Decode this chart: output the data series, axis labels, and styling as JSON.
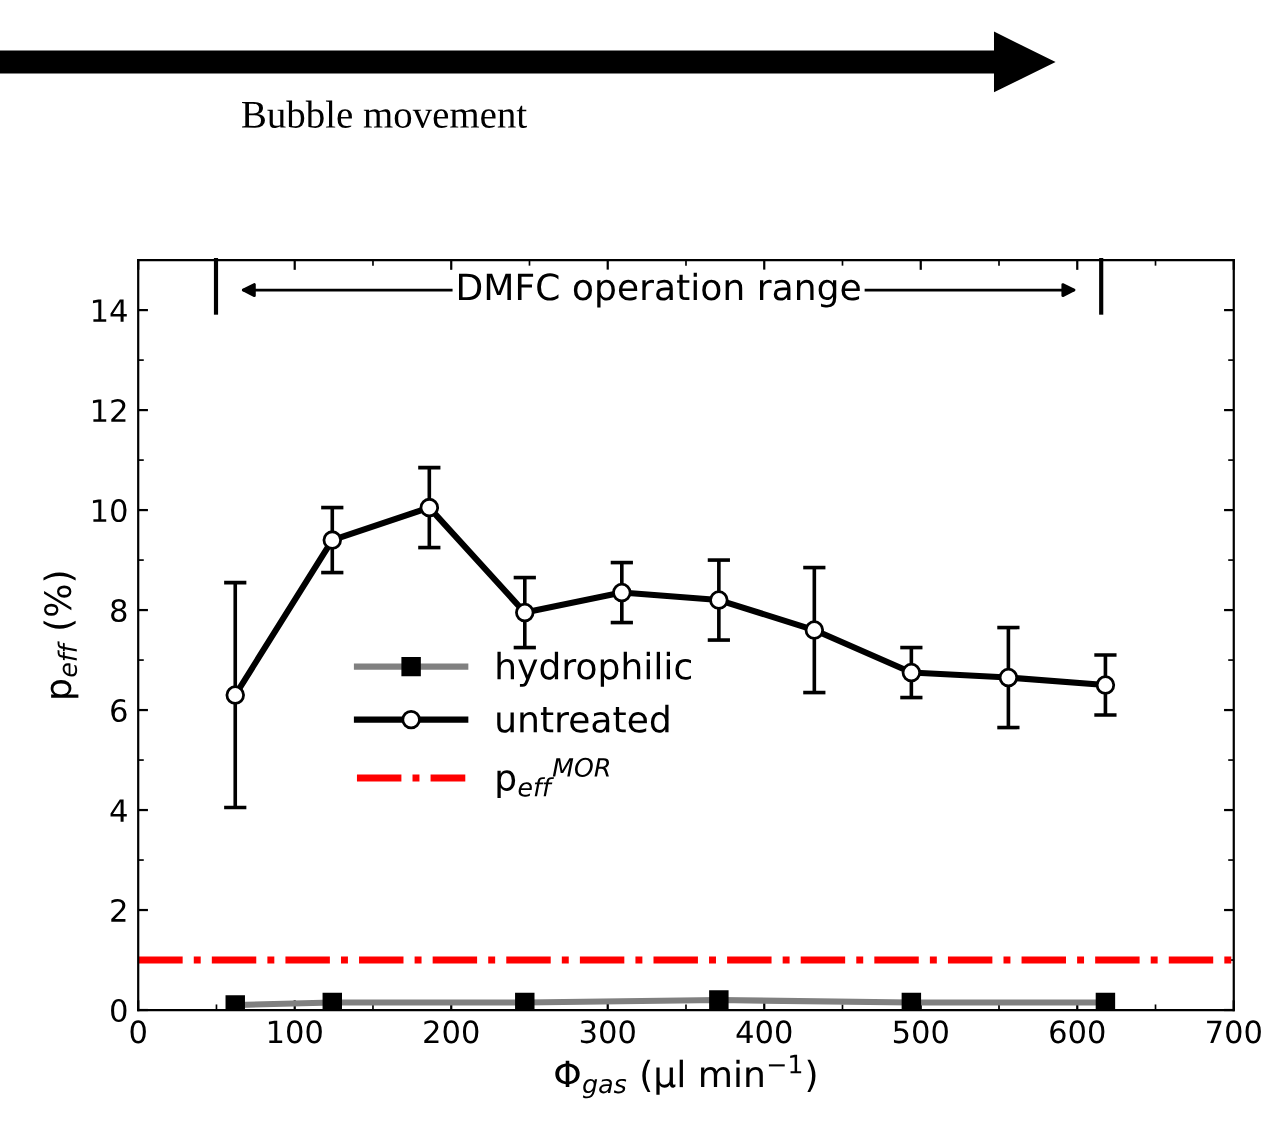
{
  "chart_data": {
    "type": "line",
    "xlabel": "Φ$_{gas}$ (µl min$^{−1}$)",
    "ylabel": "p$_{eff}$ (%)",
    "annotations": [
      "Bubble movement",
      "DMFC operation range"
    ],
    "series": [
      {
        "name": "hydrophilic",
        "color": "#808080",
        "marker": "square",
        "x": [
          62,
          124,
          247,
          371,
          494,
          618
        ],
        "values": [
          0.1,
          0.15,
          0.15,
          0.2,
          0.15,
          0.15
        ]
      },
      {
        "name": "untreated",
        "color": "#000000",
        "marker": "circle",
        "x": [
          62,
          124,
          186,
          247,
          309,
          371,
          432,
          494,
          556,
          618
        ],
        "values": [
          6.3,
          9.4,
          10.05,
          7.95,
          8.35,
          8.2,
          7.6,
          6.75,
          6.65,
          6.5
        ],
        "errors": [
          2.25,
          0.65,
          0.8,
          0.7,
          0.6,
          0.8,
          1.25,
          0.5,
          1.0,
          0.6
        ]
      }
    ],
    "ref_lines": [
      {
        "axis": "y",
        "value": 1.0,
        "label": "p$_{eff}$$^{MOR}$",
        "color": "#ff0000",
        "line_style": "dashdot"
      }
    ],
    "xlim": [
      0,
      700
    ],
    "xticks": [
      0,
      100,
      200,
      300,
      400,
      500,
      600,
      700
    ],
    "ylim": [
      0,
      15
    ],
    "yticks": [
      0,
      2,
      4,
      6,
      8,
      10,
      12,
      14
    ],
    "grid": false,
    "legend": "left",
    "line_style": "solid"
  }
}
